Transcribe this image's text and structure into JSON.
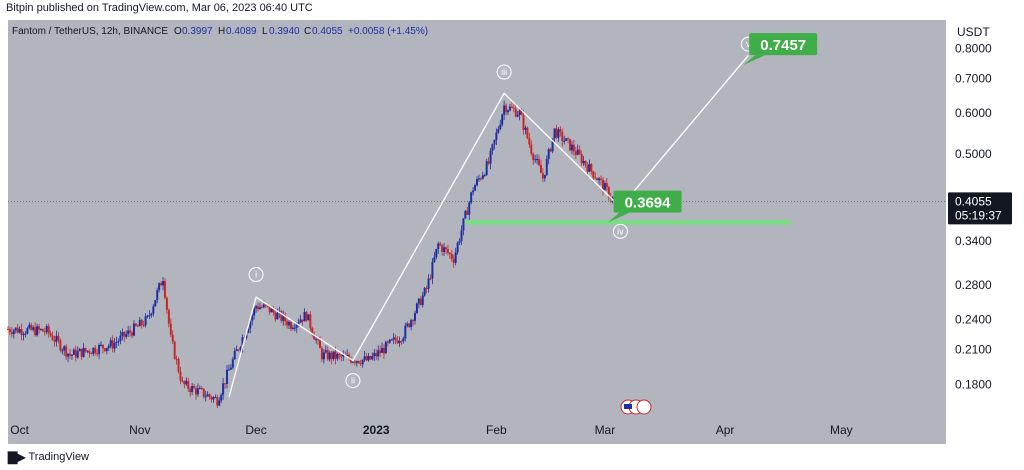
{
  "caption": "Bitpin published on TradingView.com, Mar 06, 2023 06:40 UTC",
  "brand": "TradingView",
  "brand_logo": "tradingview-logo-icon",
  "colors": {
    "background": "#b2b5be",
    "axis_bg": "#ffffff",
    "up": "#1e2fa3",
    "down": "#c62828",
    "wave_line": "#ffffff",
    "target_label": "#3fae49",
    "support_line": "#7ddb86",
    "price_label_bg": "#131722"
  },
  "chart_data": {
    "type": "candlestick",
    "symbol": "Fantom / TetherUS, 12h, BINANCE",
    "ohlc": {
      "o_label": "O",
      "o": "0.3997",
      "h_label": "H",
      "h": "0.4089",
      "l_label": "L",
      "l": "0.3940",
      "c_label": "C",
      "c": "0.4055",
      "change": "+0.0058 (+1.45%)"
    },
    "y_axis_title": "USDT",
    "y_scale": "log",
    "ylim": [
      0.155,
      0.83
    ],
    "y_ticks": [
      "0.8000",
      "0.7000",
      "0.6000",
      "0.5000",
      "0.3400",
      "0.2800",
      "0.2400",
      "0.2100",
      "0.1800"
    ],
    "x_ticks": [
      "Oct",
      "Nov",
      "Dec",
      "2023",
      "Feb",
      "Mar",
      "Apr",
      "May"
    ],
    "x_tick_dates": [
      "2022-10-01",
      "2022-11-01",
      "2022-12-01",
      "2023-01-01",
      "2023-02-01",
      "2023-03-01",
      "2023-04-01",
      "2023-05-01"
    ],
    "xlim": [
      "2022-09-28",
      "2023-05-28"
    ],
    "price_keypoints": [
      {
        "date": "2022-09-28",
        "price": 0.23
      },
      {
        "date": "2022-10-08",
        "price": 0.228
      },
      {
        "date": "2022-10-14",
        "price": 0.205
      },
      {
        "date": "2022-10-25",
        "price": 0.215
      },
      {
        "date": "2022-11-03",
        "price": 0.24
      },
      {
        "date": "2022-11-07",
        "price": 0.29
      },
      {
        "date": "2022-11-09",
        "price": 0.22
      },
      {
        "date": "2022-11-12",
        "price": 0.18
      },
      {
        "date": "2022-11-21",
        "price": 0.168
      },
      {
        "date": "2022-11-25",
        "price": 0.2
      },
      {
        "date": "2022-12-01",
        "price": 0.255
      },
      {
        "date": "2022-12-04",
        "price": 0.252
      },
      {
        "date": "2022-12-10",
        "price": 0.235
      },
      {
        "date": "2022-12-14",
        "price": 0.245
      },
      {
        "date": "2022-12-18",
        "price": 0.205
      },
      {
        "date": "2022-12-30",
        "price": 0.2
      },
      {
        "date": "2023-01-08",
        "price": 0.225
      },
      {
        "date": "2023-01-14",
        "price": 0.275
      },
      {
        "date": "2023-01-17",
        "price": 0.335
      },
      {
        "date": "2023-01-21",
        "price": 0.315
      },
      {
        "date": "2023-01-26",
        "price": 0.43
      },
      {
        "date": "2023-01-30",
        "price": 0.48
      },
      {
        "date": "2023-02-03",
        "price": 0.62
      },
      {
        "date": "2023-02-07",
        "price": 0.6
      },
      {
        "date": "2023-02-10",
        "price": 0.51
      },
      {
        "date": "2023-02-13",
        "price": 0.45
      },
      {
        "date": "2023-02-16",
        "price": 0.555
      },
      {
        "date": "2023-02-21",
        "price": 0.51
      },
      {
        "date": "2023-02-27",
        "price": 0.45
      },
      {
        "date": "2023-03-03",
        "price": 0.41
      },
      {
        "date": "2023-03-06",
        "price": 0.4055
      }
    ],
    "wave_path": [
      {
        "date": "2022-11-24",
        "price": 0.17
      },
      {
        "date": "2022-12-01",
        "price": 0.265
      },
      {
        "date": "2022-12-26",
        "price": 0.2
      },
      {
        "date": "2023-02-03",
        "price": 0.655
      },
      {
        "date": "2023-03-05",
        "price": 0.395
      },
      {
        "date": "2023-04-07",
        "price": 0.775
      }
    ],
    "wave_labels": [
      {
        "text": "i",
        "date": "2022-12-01",
        "price": 0.293
      },
      {
        "text": "ii",
        "date": "2022-12-26",
        "price": 0.183
      },
      {
        "text": "iii",
        "date": "2023-02-03",
        "price": 0.72
      },
      {
        "text": "iv",
        "date": "2023-03-05",
        "price": 0.355
      },
      {
        "text": "v",
        "date": "2023-04-07",
        "price": 0.815
      }
    ],
    "targets": [
      {
        "label": "0.7457",
        "date": "2023-04-16",
        "price": 0.815
      },
      {
        "label": "0.3694",
        "date": "2023-03-12",
        "price": 0.405
      }
    ],
    "support_level": {
      "price": 0.3694,
      "start": "2023-01-24",
      "end": "2023-05-28"
    },
    "last_price": {
      "value": "0.4055",
      "countdown": "05:19:37",
      "price": 0.4055
    }
  }
}
